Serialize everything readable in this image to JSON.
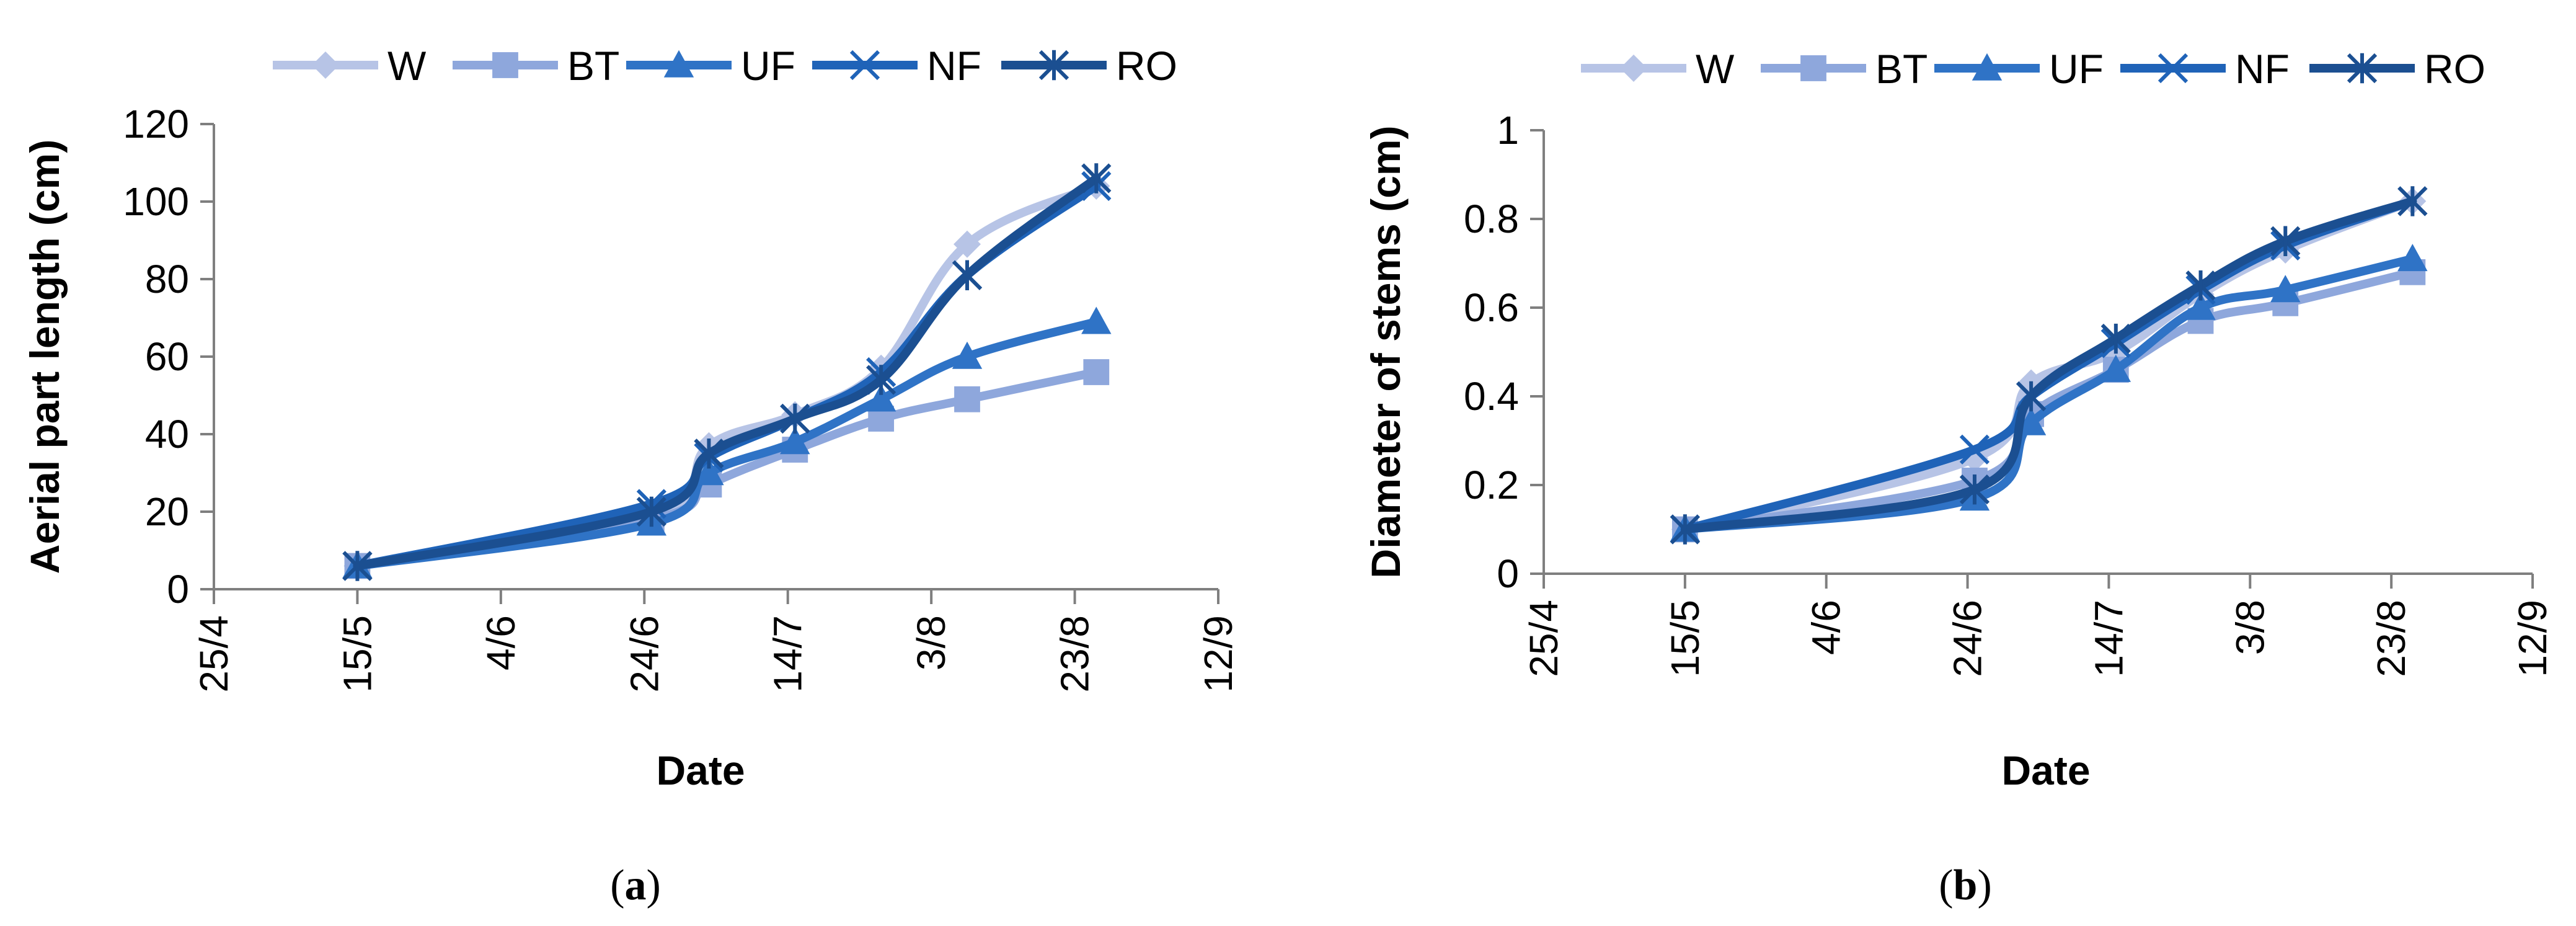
{
  "colors": {
    "W": "#b7c4e6",
    "BT": "#8ea7dc",
    "UF": "#2f73c6",
    "NF": "#1f63b8",
    "RO": "#1b4f91",
    "axis": "#7f7f7f"
  },
  "chart_data": [
    {
      "type": "line",
      "ylabel": "Aerial part length (cm)",
      "xlabel": "Date",
      "caption_letter": "a",
      "caption": "(a)",
      "ylim": [
        0,
        120
      ],
      "yticks": [
        "0",
        "20",
        "40",
        "60",
        "80",
        "100",
        "120"
      ],
      "x_axis": {
        "start_day": 0,
        "end_day": 140,
        "step": 20
      },
      "xticks": [
        "25/4",
        "15/5",
        "4/6",
        "24/6",
        "14/7",
        "3/8",
        "23/8",
        "12/9"
      ],
      "legend": [
        "W",
        "BT",
        "UF",
        "NF",
        "RO"
      ],
      "x_days": [
        20,
        61,
        69,
        81,
        93,
        105,
        123
      ],
      "series": [
        {
          "name": "W",
          "marker": "diamond",
          "values": [
            6,
            18,
            37,
            45,
            57,
            89,
            104
          ]
        },
        {
          "name": "BT",
          "marker": "square",
          "values": [
            6,
            18,
            27,
            36,
            44,
            49,
            56
          ]
        },
        {
          "name": "UF",
          "marker": "triangle",
          "values": [
            6,
            17,
            30,
            38,
            49,
            60,
            69
          ]
        },
        {
          "name": "NF",
          "marker": "x",
          "values": [
            6,
            22,
            34,
            44,
            56,
            81,
            104
          ]
        },
        {
          "name": "RO",
          "marker": "star",
          "values": [
            6,
            20,
            35,
            44,
            54,
            81,
            106
          ]
        }
      ]
    },
    {
      "type": "line",
      "ylabel": "Diameter of stems (cm)",
      "xlabel": "Date",
      "caption_letter": "b",
      "caption": "(b)",
      "ylim": [
        0,
        1
      ],
      "yticks": [
        "0",
        "0.2",
        "0.4",
        "0.6",
        "0.8",
        "1"
      ],
      "x_axis": {
        "start_day": 0,
        "end_day": 140,
        "step": 20
      },
      "xticks": [
        "25/4",
        "15/5",
        "4/6",
        "24/6",
        "14/7",
        "3/8",
        "23/8",
        "12/9"
      ],
      "legend": [
        "W",
        "BT",
        "UF",
        "NF",
        "RO"
      ],
      "x_days": [
        20,
        61,
        69,
        81,
        93,
        105,
        123
      ],
      "series": [
        {
          "name": "W",
          "marker": "diamond",
          "values": [
            0.1,
            0.26,
            0.43,
            0.5,
            0.63,
            0.73,
            0.84
          ]
        },
        {
          "name": "BT",
          "marker": "square",
          "values": [
            0.1,
            0.21,
            0.36,
            0.46,
            0.57,
            0.61,
            0.68
          ]
        },
        {
          "name": "UF",
          "marker": "triangle",
          "values": [
            0.1,
            0.17,
            0.34,
            0.46,
            0.6,
            0.64,
            0.71
          ]
        },
        {
          "name": "NF",
          "marker": "x",
          "values": [
            0.1,
            0.28,
            0.4,
            0.52,
            0.64,
            0.74,
            0.84
          ]
        },
        {
          "name": "RO",
          "marker": "star",
          "values": [
            0.1,
            0.19,
            0.4,
            0.53,
            0.65,
            0.75,
            0.84
          ]
        }
      ]
    }
  ]
}
